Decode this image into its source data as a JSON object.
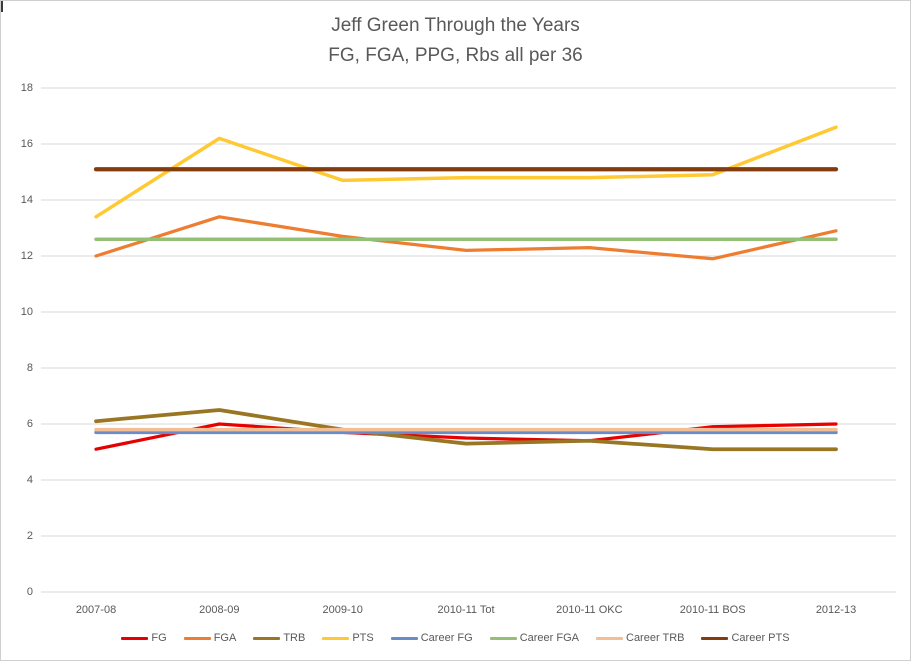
{
  "title": {
    "line1": "Jeff Green Through the Years",
    "line2": "FG, FGA, PPG, Rbs all per 36"
  },
  "chart_data": {
    "type": "line",
    "title": "Jeff Green Through the Years",
    "subtitle": "FG, FGA, PPG, Rbs all per 36",
    "categories": [
      "2007-08",
      "2008-09",
      "2009-10",
      "2010-11 Tot",
      "2010-11 OKC",
      "2010-11 BOS",
      "2012-13"
    ],
    "series": [
      {
        "name": "FG",
        "color": "#E80000",
        "stroke_width": 3.25,
        "values": [
          5.1,
          6.0,
          5.7,
          5.5,
          5.4,
          5.9,
          6.0
        ]
      },
      {
        "name": "FGA",
        "color": "#ED7D31",
        "stroke_width": 3.25,
        "values": [
          12.0,
          13.4,
          12.7,
          12.2,
          12.3,
          11.9,
          12.9
        ]
      },
      {
        "name": "TRB",
        "color": "#997623",
        "stroke_width": 3.75,
        "values": [
          6.1,
          6.5,
          5.8,
          5.3,
          5.4,
          5.1,
          5.1
        ]
      },
      {
        "name": "PTS",
        "color": "#FFC933",
        "stroke_width": 3.5,
        "values": [
          13.4,
          16.2,
          14.7,
          14.8,
          14.8,
          14.9,
          16.6
        ]
      },
      {
        "name": "Career FG",
        "color": "#698CC8",
        "stroke_width": 3.5,
        "values": [
          5.7,
          5.7,
          5.7,
          5.7,
          5.7,
          5.7,
          5.7
        ]
      },
      {
        "name": "Career FGA",
        "color": "#94C075",
        "stroke_width": 3.5,
        "values": [
          12.6,
          12.6,
          12.6,
          12.6,
          12.6,
          12.6,
          12.6
        ]
      },
      {
        "name": "Career TRB",
        "color": "#F2BE96",
        "stroke_width": 3.5,
        "values": [
          5.8,
          5.8,
          5.8,
          5.8,
          5.8,
          5.8,
          5.8
        ]
      },
      {
        "name": "Career PTS",
        "color": "#843C0C",
        "stroke_width": 4.25,
        "values": [
          15.1,
          15.1,
          15.1,
          15.1,
          15.1,
          15.1,
          15.1
        ]
      }
    ],
    "ylim": [
      0,
      18
    ],
    "ytick_step": 2,
    "ytick_labels": [
      "0",
      "2",
      "4",
      "6",
      "8",
      "10",
      "12",
      "14",
      "16",
      "18"
    ],
    "grid": true,
    "grid_color": "#D9D9D9",
    "axis_text_color": "#595959",
    "legend_position": "bottom"
  }
}
